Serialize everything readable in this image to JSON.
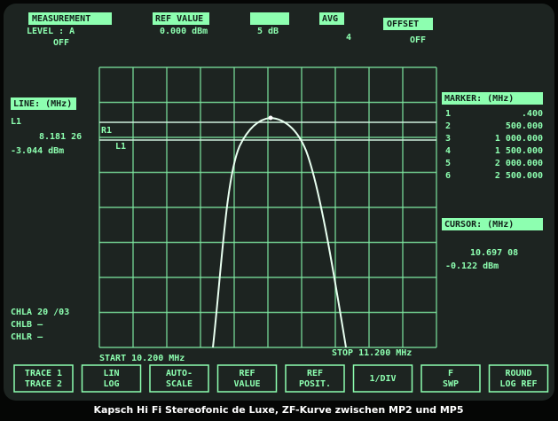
{
  "header": {
    "measurement": {
      "title": "MEASUREMENT",
      "line1": "LEVEL : A",
      "line2": "OFF"
    },
    "ref_value": {
      "title": "REF VALUE",
      "value": "0.000 dBm"
    },
    "scale": {
      "value": "5 dB"
    },
    "avg": {
      "title": "AVG",
      "value": "4"
    },
    "offset": {
      "title": "OFFSET",
      "value": "OFF"
    }
  },
  "line_panel": {
    "title": "LINE: (MHz)",
    "name": "L1",
    "frequency": "8.181 26",
    "level": "-3.044 dBm"
  },
  "marker_panel": {
    "title": "MARKER: (MHz)",
    "rows": [
      {
        "index": "1",
        "value": ".400"
      },
      {
        "index": "2",
        "value": "500.000"
      },
      {
        "index": "3",
        "value": "1 000.000"
      },
      {
        "index": "4",
        "value": "1 500.000"
      },
      {
        "index": "5",
        "value": "2 000.000"
      },
      {
        "index": "6",
        "value": "2 500.000"
      }
    ]
  },
  "cursor_panel": {
    "title": "CURSOR: (MHz)",
    "frequency": "10.697 08",
    "level": "-0.122 dBm"
  },
  "channels": [
    "CHLA 20 /03",
    "CHLB —",
    "CHLR —"
  ],
  "plot": {
    "ref_label": "R1",
    "line_label": "L1"
  },
  "sweep": {
    "start": "START   10.200 MHz",
    "stop": "STOP   11.200 MHz"
  },
  "softkeys": [
    [
      "TRACE 1",
      "TRACE 2"
    ],
    [
      "LIN",
      "LOG"
    ],
    [
      "AUTO-",
      "SCALE"
    ],
    [
      "REF",
      "VALUE"
    ],
    [
      "REF",
      "POSIT."
    ],
    [
      "1/DIV"
    ],
    [
      "F",
      "SWP"
    ],
    [
      "ROUND",
      "LOG REF"
    ]
  ],
  "caption": "Kapsch Hi Fi Stereofonic de Luxe, ZF-Kurve zwischen MP2 und MP5"
}
